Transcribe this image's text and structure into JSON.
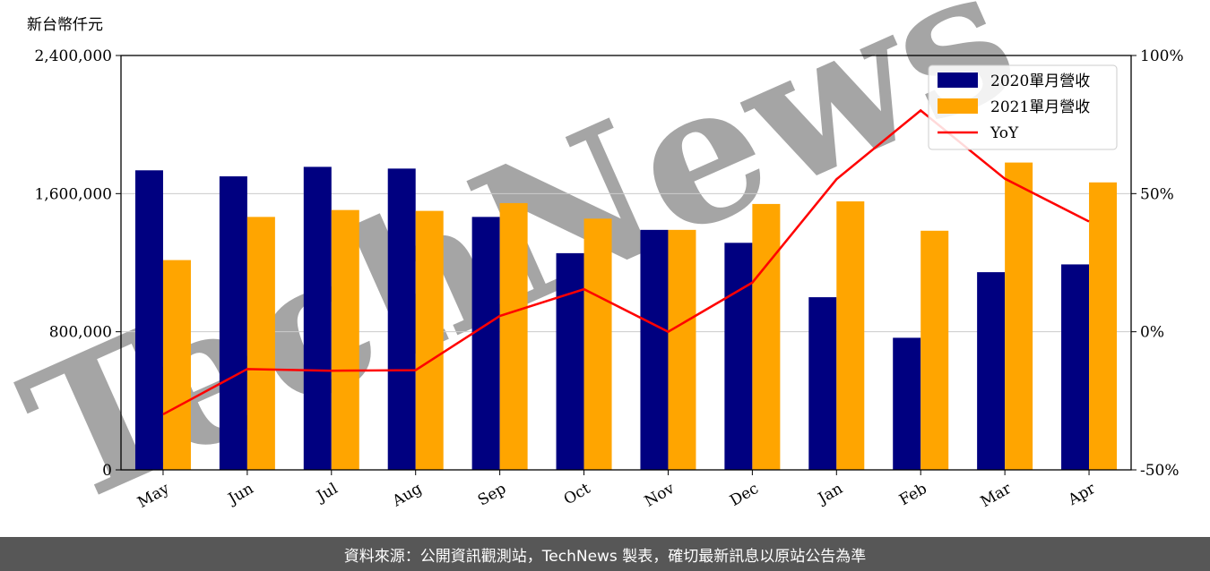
{
  "chart_data": {
    "type": "bar",
    "unit_label": "新台幣仟元",
    "categories": [
      "May",
      "Jun",
      "Jul",
      "Aug",
      "Sep",
      "Oct",
      "Nov",
      "Dec",
      "Jan",
      "Feb",
      "Mar",
      "Apr"
    ],
    "series": [
      {
        "name": "2020單月營收",
        "type": "bar",
        "axis": "left",
        "color": "#000080",
        "values": [
          1735000,
          1700000,
          1755000,
          1745000,
          1465000,
          1255000,
          1390000,
          1315000,
          1000000,
          765000,
          1145000,
          1190000
        ]
      },
      {
        "name": "2021單月營收",
        "type": "bar",
        "axis": "left",
        "color": "#FFA500",
        "values": [
          1215000,
          1465000,
          1505000,
          1500000,
          1545000,
          1455000,
          1390000,
          1540000,
          1555000,
          1385000,
          1780000,
          1665000
        ]
      }
    ],
    "line_series": {
      "name": "YoY",
      "type": "line",
      "axis": "right",
      "color": "#FF0000",
      "values": [
        -29.9,
        -13.5,
        -14.1,
        -13.9,
        5.7,
        15.4,
        0.0,
        17.8,
        55.2,
        80.1,
        55.4,
        39.9
      ]
    },
    "y_left": {
      "min": 0,
      "max": 2400000,
      "ticks": [
        0,
        800000,
        1600000,
        2400000
      ],
      "tick_labels": [
        "0",
        "800,000",
        "1,600,000",
        "2,400,000"
      ]
    },
    "y_right": {
      "min": -50,
      "max": 100,
      "ticks": [
        -50,
        0,
        50,
        100
      ],
      "tick_labels": [
        "-50%",
        "0%",
        "50%",
        "100%"
      ]
    },
    "grid": "horizontal",
    "legend": "top-right",
    "watermark": "TechNews"
  },
  "footer": {
    "source_text": "資料來源：公開資訊觀測站，TechNews 製表，確切最新訊息以原站公告為準"
  },
  "colors": {
    "axis": "#000000",
    "grid": "#cccccc",
    "footer_bg": "#575757",
    "watermark": "#f3c9c9"
  }
}
